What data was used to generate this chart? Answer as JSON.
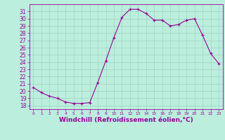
{
  "hours": [
    0,
    1,
    2,
    3,
    4,
    5,
    6,
    7,
    8,
    9,
    10,
    11,
    12,
    13,
    14,
    15,
    16,
    17,
    18,
    19,
    20,
    21,
    22,
    23
  ],
  "values": [
    20.5,
    19.8,
    19.3,
    19.0,
    18.5,
    18.3,
    18.3,
    18.4,
    21.2,
    24.2,
    27.4,
    30.2,
    31.3,
    31.3,
    30.7,
    29.8,
    29.8,
    29.0,
    29.2,
    29.8,
    30.0,
    27.7,
    25.2,
    23.8
  ],
  "xlim": [
    -0.5,
    23.5
  ],
  "ylim": [
    17.5,
    32
  ],
  "yticks": [
    18,
    19,
    20,
    21,
    22,
    23,
    24,
    25,
    26,
    27,
    28,
    29,
    30,
    31
  ],
  "xticks": [
    0,
    1,
    2,
    3,
    4,
    5,
    6,
    7,
    8,
    9,
    10,
    11,
    12,
    13,
    14,
    15,
    16,
    17,
    18,
    19,
    20,
    21,
    22,
    23
  ],
  "xlabel": "Windchill (Refroidissement éolien,°C)",
  "line_color": "#990099",
  "marker": "+",
  "bg_color": "#bbeedd",
  "grid_color": "#99ccbb",
  "axis_fontsize": 5.5,
  "label_fontsize": 6.5,
  "xtick_fontsize": 4.2
}
